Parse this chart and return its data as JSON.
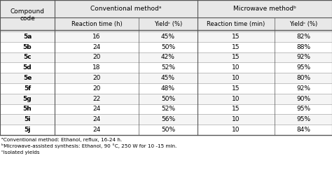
{
  "compounds": [
    "5a",
    "5b",
    "5c",
    "5d",
    "5e",
    "5f",
    "5g",
    "5h",
    "5i",
    "5j"
  ],
  "conv_time": [
    "16",
    "24",
    "20",
    "18",
    "20",
    "20",
    "22",
    "24",
    "24",
    "24"
  ],
  "conv_yield": [
    "45%",
    "50%",
    "42%",
    "52%",
    "45%",
    "48%",
    "50%",
    "52%",
    "56%",
    "50%"
  ],
  "mw_time": [
    "15",
    "15",
    "15",
    "10",
    "10",
    "15",
    "10",
    "15",
    "10",
    "10"
  ],
  "mw_yield": [
    "82%",
    "88%",
    "92%",
    "95%",
    "80%",
    "92%",
    "90%",
    "95%",
    "95%",
    "84%"
  ],
  "header1": "Conventional methodᵃ",
  "header2": "Microwave methodᵇ",
  "subheader_conv_time": "Reaction time (h)",
  "subheader_conv_yield": "Yieldᶜ (%)",
  "subheader_mw_time": "Reaction time (min)",
  "subheader_mw_yield": "Yieldᶜ (%)",
  "col1_header": "Compound\ncode",
  "footnote1": "ᵃConventional method: Ethanol, reflux, 16-24 h.",
  "footnote2": "ᵇMicrowave-assisted synthesis: Ethanol, 90 °C, 250 W for 10 -15 min.",
  "footnote3": "ᶜIsolated yields",
  "bg_color": "#f0f0f0",
  "header_bg": "#d0d0d0",
  "line_color": "#555555"
}
